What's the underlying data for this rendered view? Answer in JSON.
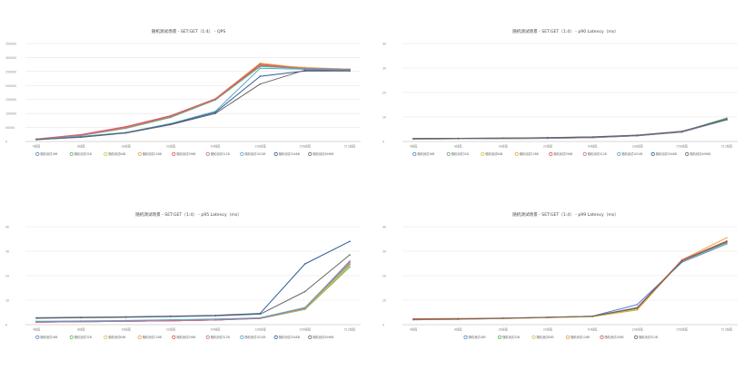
{
  "chart_data": [
    {
      "type": "line",
      "title": "随机测试场景 - SET:GET（1:4） - QPS",
      "categories": [
        "4线程",
        "8线程",
        "16线程",
        "32线程",
        "64线程",
        "128线程",
        "256线程",
        "512线程"
      ],
      "ylim": [
        0,
        350000
      ],
      "yticks": [
        0,
        50000,
        100000,
        150000,
        200000,
        250000,
        300000,
        350000
      ],
      "grid": "horizontal",
      "legend_position": "bottom",
      "series": [
        {
          "name": "随机测试16B",
          "color": "#4e86c8",
          "values": [
            8000,
            22000,
            48000,
            88000,
            150000,
            270000,
            262000,
            258000
          ]
        },
        {
          "name": "随机测试32B",
          "color": "#5fb55f",
          "values": [
            7800,
            21500,
            47000,
            86000,
            148000,
            268000,
            260000,
            256000
          ]
        },
        {
          "name": "随机测试64B",
          "color": "#d7c24d",
          "values": [
            8200,
            23000,
            50000,
            90000,
            152000,
            274000,
            265000,
            258000
          ]
        },
        {
          "name": "随机测试128B",
          "color": "#e9a441",
          "values": [
            8500,
            24000,
            52000,
            92000,
            153000,
            280000,
            262000,
            259000
          ]
        },
        {
          "name": "随机测试256B",
          "color": "#d9574e",
          "values": [
            8600,
            24500,
            53000,
            92000,
            152000,
            276000,
            260000,
            257000
          ]
        },
        {
          "name": "随机测试512B",
          "color": "#c96b9b",
          "values": [
            8000,
            22500,
            49000,
            89000,
            150000,
            272000,
            262000,
            258000
          ]
        },
        {
          "name": "随机测试1024B",
          "color": "#53a9c9",
          "values": [
            7500,
            18000,
            32000,
            64000,
            108000,
            262000,
            258000,
            256000
          ]
        },
        {
          "name": "随机测试2048B",
          "color": "#2f5d9b",
          "values": [
            6800,
            16000,
            31000,
            62000,
            104000,
            233000,
            252000,
            252000
          ]
        },
        {
          "name": "随机测试4096B",
          "color": "#666666",
          "values": [
            6500,
            15000,
            30000,
            60000,
            100000,
            205000,
            255000,
            253000
          ]
        }
      ]
    },
    {
      "type": "line",
      "title": "随机测试场景 - SET:GET（1:4） - p90 Latency（ms）",
      "categories": [
        "4线程",
        "8线程",
        "16线程",
        "32线程",
        "64线程",
        "128线程",
        "256线程",
        "512线程"
      ],
      "ylim": [
        0,
        40
      ],
      "yticks": [
        0,
        10,
        20,
        30,
        40
      ],
      "grid": "horizontal",
      "legend_position": "bottom",
      "series": [
        {
          "name": "随机测试16B",
          "color": "#4e86c8",
          "values": [
            1.0,
            1.1,
            1.2,
            1.3,
            1.6,
            2.3,
            3.8,
            8.8
          ]
        },
        {
          "name": "随机测试32B",
          "color": "#5fb55f",
          "values": [
            1.0,
            1.1,
            1.2,
            1.3,
            1.6,
            2.4,
            4.0,
            9.6
          ]
        },
        {
          "name": "随机测试64B",
          "color": "#d7c24d",
          "values": [
            1.0,
            1.1,
            1.2,
            1.3,
            1.6,
            2.3,
            3.9,
            9.2
          ]
        },
        {
          "name": "随机测试128B",
          "color": "#e9a441",
          "values": [
            1.0,
            1.1,
            1.2,
            1.3,
            1.6,
            2.3,
            3.9,
            9.0
          ]
        },
        {
          "name": "随机测试256B",
          "color": "#d9574e",
          "values": [
            1.0,
            1.1,
            1.2,
            1.3,
            1.6,
            2.4,
            3.9,
            9.0
          ]
        },
        {
          "name": "随机测试512B",
          "color": "#c96b9b",
          "values": [
            1.0,
            1.1,
            1.2,
            1.3,
            1.6,
            2.3,
            3.9,
            9.0
          ]
        },
        {
          "name": "随机测试1024B",
          "color": "#53a9c9",
          "values": [
            1.1,
            1.2,
            1.3,
            1.4,
            1.7,
            2.4,
            4.0,
            9.0
          ]
        },
        {
          "name": "随机测试2048B",
          "color": "#2f5d9b",
          "values": [
            1.2,
            1.3,
            1.4,
            1.5,
            1.8,
            2.5,
            4.1,
            9.0
          ]
        },
        {
          "name": "随机测试4096B",
          "color": "#666666",
          "values": [
            1.2,
            1.3,
            1.4,
            1.6,
            1.9,
            2.6,
            4.2,
            9.2
          ]
        }
      ]
    },
    {
      "type": "line",
      "title": "随机测试场景 - SET:GET（1:4） - p95 Latency（ms）",
      "categories": [
        "4线程",
        "8线程",
        "16线程",
        "32线程",
        "64线程",
        "128线程",
        "256线程",
        "512线程"
      ],
      "ylim": [
        0,
        40
      ],
      "yticks": [
        0,
        10,
        20,
        30,
        40
      ],
      "grid": "horizontal",
      "legend_position": "bottom",
      "series": [
        {
          "name": "随机测试16B",
          "color": "#4e86c8",
          "values": [
            1.0,
            1.2,
            1.4,
            1.6,
            1.9,
            2.6,
            6.5,
            24.5
          ]
        },
        {
          "name": "随机测试32B",
          "color": "#5fb55f",
          "values": [
            1.0,
            1.2,
            1.4,
            1.6,
            1.9,
            2.5,
            6.2,
            23.5
          ]
        },
        {
          "name": "随机测试64B",
          "color": "#d7c24d",
          "values": [
            1.0,
            1.2,
            1.4,
            1.6,
            1.9,
            2.6,
            6.4,
            24.2
          ]
        },
        {
          "name": "随机测试128B",
          "color": "#e9a441",
          "values": [
            1.0,
            1.2,
            1.4,
            1.6,
            1.9,
            2.6,
            6.6,
            25.0
          ]
        },
        {
          "name": "随机测试256B",
          "color": "#d9574e",
          "values": [
            1.0,
            1.2,
            1.4,
            1.6,
            1.9,
            2.6,
            6.7,
            25.5
          ]
        },
        {
          "name": "随机测试512B",
          "color": "#c96b9b",
          "values": [
            1.0,
            1.2,
            1.4,
            1.6,
            1.9,
            2.6,
            6.8,
            26.0
          ]
        },
        {
          "name": "随机测试1024B",
          "color": "#53a9c9",
          "values": [
            1.4,
            1.5,
            1.7,
            2.0,
            2.3,
            2.8,
            7.0,
            25.5
          ]
        },
        {
          "name": "随机测试2048B",
          "color": "#2f5d9b",
          "values": [
            2.8,
            3.0,
            3.2,
            3.5,
            3.8,
            4.6,
            24.8,
            34.0
          ]
        },
        {
          "name": "随机测试4096B",
          "color": "#666666",
          "values": [
            2.6,
            2.8,
            3.0,
            3.3,
            3.6,
            4.3,
            13.5,
            28.5
          ]
        }
      ]
    },
    {
      "type": "line",
      "title": "随机测试场景 - SET:GET（1:4） - p99 Latency（ms）",
      "categories": [
        "4线程",
        "8线程",
        "16线程",
        "32线程",
        "64线程",
        "128线程",
        "256线程",
        "512线程"
      ],
      "ylim": [
        0,
        40
      ],
      "yticks": [
        0,
        10,
        20,
        30,
        40
      ],
      "grid": "horizontal",
      "legend_position": "bottom",
      "series": [
        {
          "name": "随机测试16B",
          "color": "#4e86c8",
          "values": [
            2.0,
            2.2,
            2.5,
            2.9,
            3.5,
            8.2,
            25.5,
            33.0
          ]
        },
        {
          "name": "随机测试32B",
          "color": "#5fb55f",
          "values": [
            2.1,
            2.3,
            2.6,
            3.0,
            3.4,
            6.5,
            26.0,
            33.5
          ]
        },
        {
          "name": "随机测试64B",
          "color": "#d7c24d",
          "values": [
            2.0,
            2.2,
            2.5,
            2.9,
            3.3,
            6.0,
            26.2,
            34.0
          ]
        },
        {
          "name": "随机测试128B",
          "color": "#e9a441",
          "values": [
            2.0,
            2.2,
            2.5,
            2.9,
            3.3,
            6.0,
            26.5,
            35.5
          ]
        },
        {
          "name": "随机测试256B",
          "color": "#d9574e",
          "values": [
            2.4,
            2.5,
            2.7,
            3.0,
            3.4,
            7.0,
            26.4,
            34.2
          ]
        },
        {
          "name": "随机测试512B",
          "color": "#666666",
          "values": [
            2.1,
            2.3,
            2.6,
            3.0,
            3.4,
            6.8,
            26.0,
            33.8
          ]
        }
      ]
    }
  ]
}
